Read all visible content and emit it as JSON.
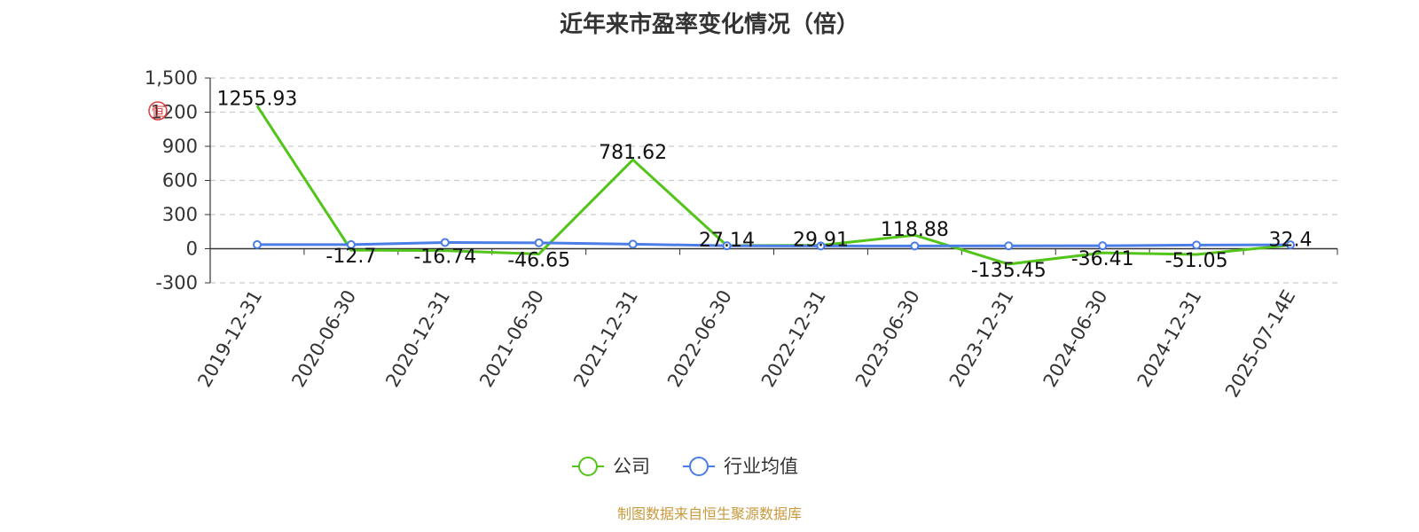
{
  "chart_data": {
    "type": "line",
    "title": "近年来市盈率变化情况（倍）",
    "categories": [
      "2019-12-31",
      "2020-06-30",
      "2020-12-31",
      "2021-06-30",
      "2021-12-31",
      "2022-06-30",
      "2022-12-31",
      "2023-06-30",
      "2023-12-31",
      "2024-06-30",
      "2024-12-31",
      "2025-07-14E"
    ],
    "y_ticks": [
      "1,500",
      "1200",
      "900",
      "600",
      "300",
      "0",
      "-300"
    ],
    "ylim": [
      -300,
      1500
    ],
    "grid": true,
    "legend_position": "bottom-center",
    "series": [
      {
        "name": "公司",
        "color": "#52c41a",
        "values": [
          1255.93,
          -12.7,
          -16.74,
          -46.65,
          781.62,
          27.14,
          29.91,
          118.88,
          -135.45,
          -36.41,
          -51.05,
          32.4
        ],
        "labels": [
          "1255.93",
          "-12.7",
          "-16.74",
          "-46.65",
          "781.62",
          "27.14",
          "29.91",
          "118.88",
          "-135.45",
          "-36.41",
          "-51.05",
          "32.4"
        ]
      },
      {
        "name": "行业均值",
        "color": "#4a7ee6",
        "values": [
          36,
          36,
          55,
          52,
          40,
          26,
          24,
          24,
          25,
          26,
          32,
          34
        ]
      }
    ]
  },
  "source": "制图数据来自恒生聚源数据库",
  "watermark_text": "恒"
}
